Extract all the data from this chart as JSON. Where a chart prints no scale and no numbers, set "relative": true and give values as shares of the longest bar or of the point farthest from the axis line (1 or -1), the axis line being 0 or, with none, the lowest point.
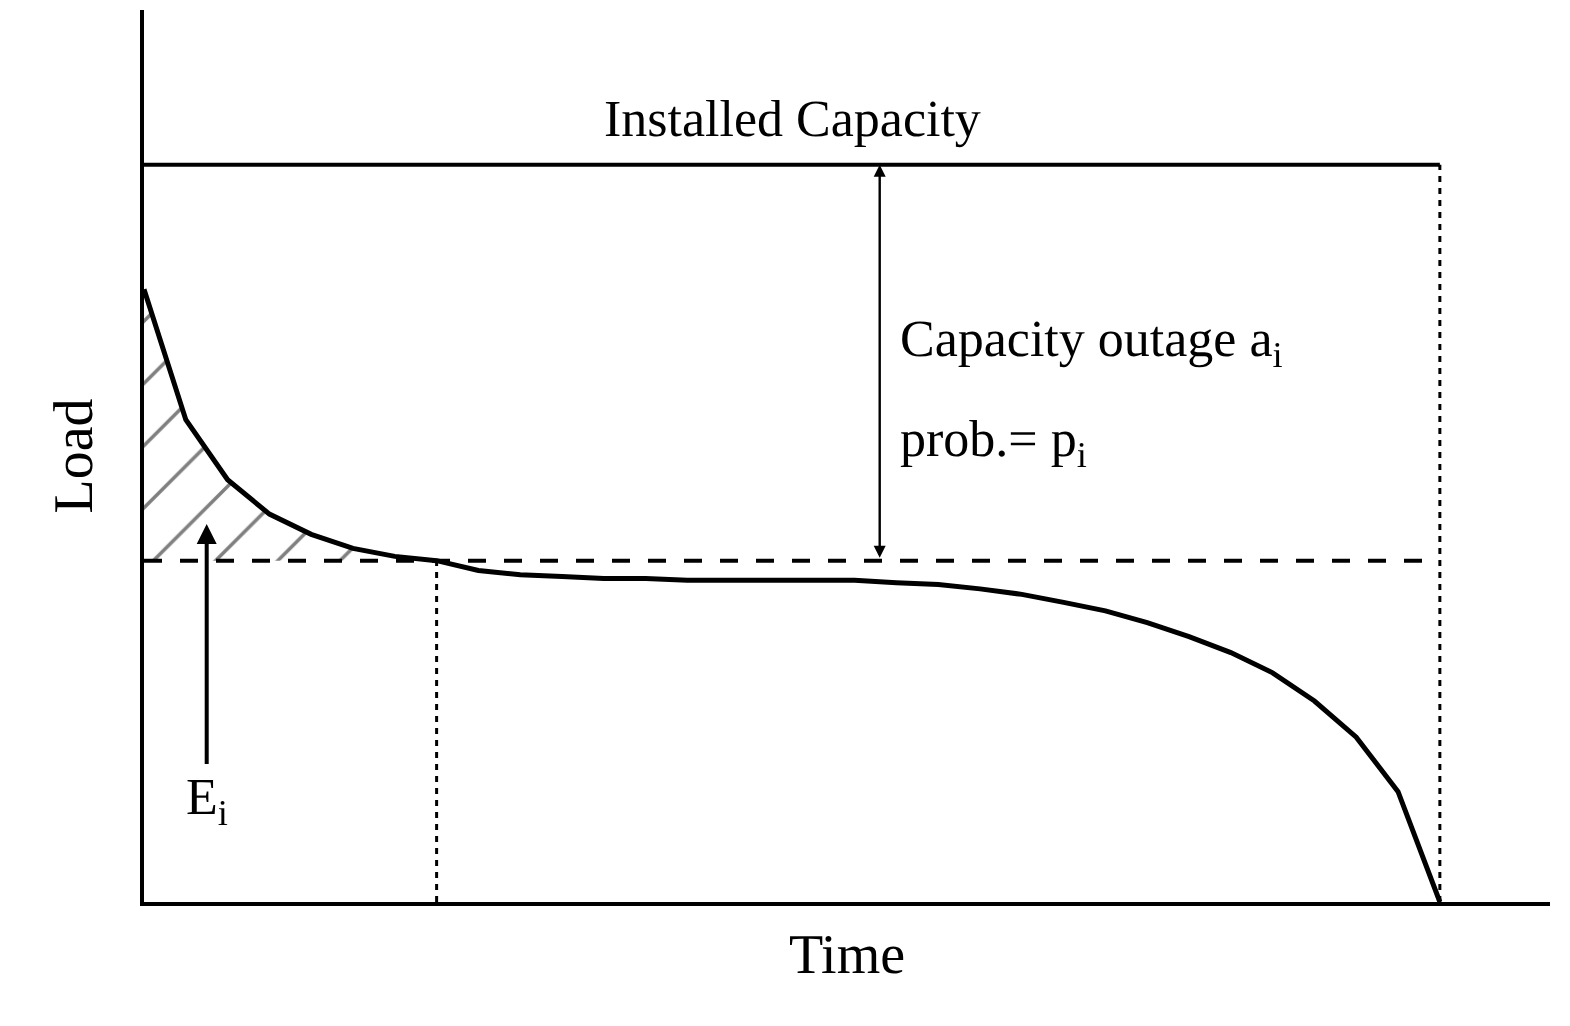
{
  "chart_data": {
    "type": "line",
    "relative": true,
    "tick_labels": false,
    "legend": false,
    "xlabel": "Time",
    "ylabel": "Load",
    "categories": [
      null,
      null,
      null,
      null,
      null,
      null,
      null,
      null,
      null,
      null,
      null,
      null,
      null,
      null,
      null,
      null,
      null,
      null,
      null,
      null,
      null,
      null,
      null,
      null,
      null,
      null,
      null,
      null,
      null,
      null,
      null,
      null
    ],
    "series": [
      {
        "color": "#000000",
        "values": [
          1.0,
          0.787,
          0.689,
          0.633,
          0.6,
          0.577,
          0.564,
          0.557,
          0.541,
          0.534,
          0.531,
          0.528,
          0.528,
          0.525,
          0.525,
          0.525,
          0.525,
          0.525,
          0.521,
          0.518,
          0.511,
          0.502,
          0.489,
          0.475,
          0.456,
          0.433,
          0.407,
          0.374,
          0.328,
          0.269,
          0.18,
          0.0
        ],
        "lower": [
          0.557,
          0.557,
          0.557,
          0.557,
          0.557,
          0.557,
          0.557,
          0.557,
          null,
          null,
          null,
          null,
          null,
          null,
          null,
          null,
          null,
          null,
          null,
          null,
          null,
          null,
          null,
          null,
          null,
          null,
          null,
          null,
          null,
          null,
          null,
          null
        ],
        "upper": [
          1.0,
          0.787,
          0.689,
          0.633,
          0.6,
          0.577,
          0.564,
          0.557,
          null,
          null,
          null,
          null,
          null,
          null,
          null,
          null,
          null,
          null,
          null,
          null,
          null,
          null,
          null,
          null,
          null,
          null,
          null,
          null,
          null,
          null,
          null,
          null
        ]
      }
    ],
    "ref_lines": [
      {
        "axis": "y",
        "value": 1.203,
        "label": "Installed Capacity",
        "color": "#000000",
        "line_style": "solid"
      },
      {
        "axis": "y",
        "value": 0.557,
        "color": "#000000",
        "line_style": "dashed"
      }
    ],
    "annotations": [
      "Capacity outage a$_{i}$",
      "prob.= p$_{i}$",
      "E$_{i}$"
    ]
  }
}
